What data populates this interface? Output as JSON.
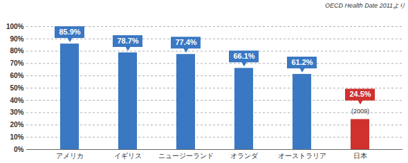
{
  "chart_data": {
    "type": "bar",
    "source": "OECD Health Date 2011より",
    "categories": [
      "アメリカ",
      "イギリス",
      "ニュージーランド",
      "オランダ",
      "オーストラリア",
      "日本"
    ],
    "values": [
      85.9,
      78.7,
      77.4,
      66.1,
      61.2,
      24.5
    ],
    "value_labels": [
      "85.9%",
      "78.7%",
      "77.4%",
      "66.1%",
      "61.2%",
      "24.5%"
    ],
    "colors": [
      "#3a78c3",
      "#3a78c3",
      "#3a78c3",
      "#3a78c3",
      "#3a78c3",
      "#d0312d"
    ],
    "annotations": [
      {
        "category": "日本",
        "text": "(2009)"
      }
    ],
    "ylim": [
      0,
      100
    ],
    "yticks": [
      {
        "value": 0,
        "label": "0%"
      },
      {
        "value": 10,
        "label": "10%"
      },
      {
        "value": 20,
        "label": "20%"
      },
      {
        "value": 30,
        "label": "30%"
      },
      {
        "value": 40,
        "label": "40%"
      },
      {
        "value": 50,
        "label": "50%"
      },
      {
        "value": 60,
        "label": "60%"
      },
      {
        "value": 70,
        "label": "70%"
      },
      {
        "value": 80,
        "label": "80%"
      },
      {
        "value": 90,
        "label": "90%"
      },
      {
        "value": 100,
        "label": "100%"
      }
    ],
    "grid": true,
    "data_labels": true
  }
}
